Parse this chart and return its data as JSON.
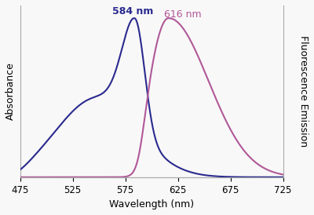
{
  "xlim": [
    475,
    725
  ],
  "ylim": [
    0,
    1.08
  ],
  "xticks": [
    475,
    525,
    575,
    625,
    675,
    725
  ],
  "xlabel": "Wavelength (nm)",
  "ylabel_left": "Absorbance",
  "ylabel_right": "Fluorescence Emission",
  "abs_peak": 584,
  "abs_peak_label": "584 nm",
  "em_peak": 616,
  "em_peak_label": "616 nm",
  "abs_color": "#2a2a8f",
  "em_color": "#b05898",
  "background_color": "#f8f8f8"
}
